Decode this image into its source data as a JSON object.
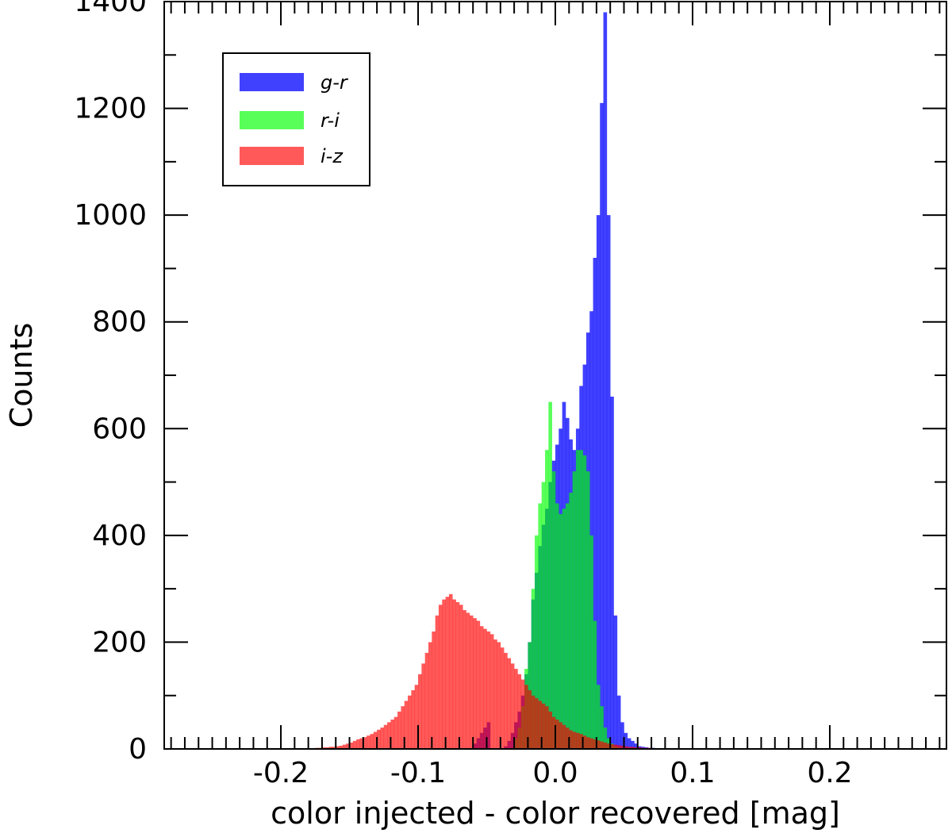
{
  "chart_data": {
    "type": "bar",
    "xlabel": "color injected - color recovered [mag]",
    "ylabel": "Counts",
    "xlim": [
      -0.285,
      0.285
    ],
    "ylim": [
      0,
      1400
    ],
    "x_ticks": [
      -0.2,
      -0.1,
      0.0,
      0.1,
      0.2
    ],
    "x_tick_labels": [
      "-0.2",
      "-0.1",
      "0.0",
      "0.1",
      "0.2"
    ],
    "y_ticks": [
      0,
      200,
      400,
      600,
      800,
      1000,
      1200,
      1400
    ],
    "y_tick_labels": [
      "0",
      "200",
      "400",
      "600",
      "800",
      "1000",
      "1200",
      "1400"
    ],
    "x_minor_step": 0.01,
    "y_minor_step": 100,
    "bin_width": 0.0025,
    "legend_position": "top-left",
    "series": [
      {
        "name": "g-r",
        "color": "#0000ff",
        "opacity": 0.75,
        "bin_start": -0.06,
        "values": [
          10,
          20,
          30,
          40,
          50,
          0,
          0,
          0,
          0,
          5,
          15,
          30,
          50,
          70,
          100,
          140,
          200,
          280,
          330,
          380,
          420,
          450,
          500,
          540,
          570,
          600,
          650,
          620,
          580,
          560,
          600,
          680,
          720,
          780,
          820,
          920,
          1000,
          1210,
          1380,
          1000,
          660,
          250,
          100,
          50,
          30,
          20,
          15,
          10,
          5,
          4,
          3,
          2,
          2
        ]
      },
      {
        "name": "r-i",
        "color": "#00ff00",
        "opacity": 0.65,
        "bin_start": -0.03,
        "values": [
          20,
          40,
          80,
          150,
          200,
          300,
          400,
          460,
          500,
          560,
          650,
          520,
          460,
          440,
          450,
          460,
          480,
          520,
          560,
          560,
          550,
          520,
          400,
          240,
          120,
          80,
          40,
          20,
          10,
          5,
          3,
          2,
          1
        ]
      },
      {
        "name": "i-z",
        "color": "#ff0000",
        "opacity": 0.65,
        "bin_start": -0.175,
        "values": [
          2,
          2,
          3,
          3,
          4,
          4,
          5,
          6,
          8,
          10,
          12,
          15,
          18,
          20,
          22,
          25,
          28,
          32,
          36,
          40,
          45,
          50,
          55,
          60,
          70,
          80,
          90,
          100,
          110,
          120,
          140,
          160,
          180,
          200,
          220,
          250,
          270,
          280,
          285,
          290,
          280,
          275,
          270,
          260,
          255,
          250,
          245,
          240,
          230,
          225,
          220,
          215,
          205,
          200,
          190,
          180,
          170,
          160,
          150,
          140,
          130,
          120,
          110,
          100,
          95,
          90,
          85,
          80,
          70,
          60,
          55,
          50,
          45,
          40,
          35,
          32,
          30,
          28,
          25,
          22,
          20,
          18,
          16,
          14,
          12,
          10,
          9,
          8,
          7,
          6,
          5,
          4,
          4,
          3,
          3,
          2,
          2,
          2,
          1,
          1,
          1
        ]
      }
    ]
  }
}
